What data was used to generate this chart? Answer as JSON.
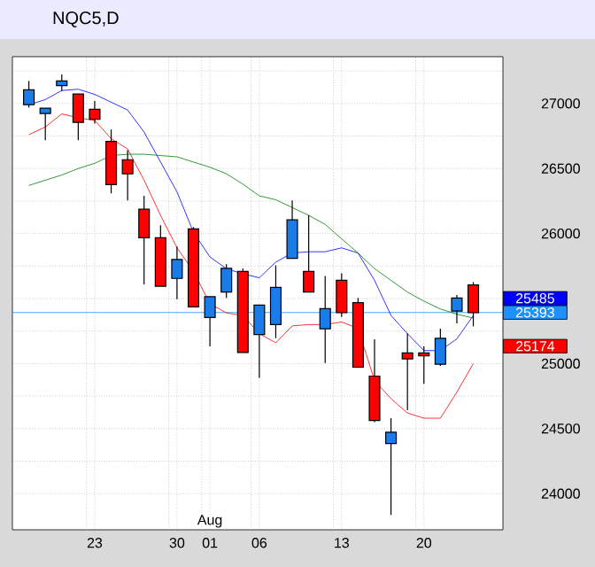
{
  "chart_data": {
    "type": "candlestick",
    "title": "NQC5,D",
    "categories": [
      null,
      null,
      null,
      null,
      "23",
      null,
      null,
      null,
      null,
      "30",
      null,
      "01",
      null,
      null,
      "06",
      null,
      null,
      null,
      null,
      "13",
      null,
      null,
      null,
      null,
      "20",
      null,
      null,
      null
    ],
    "ohlc": [
      [
        26991,
        27173,
        26969,
        27105
      ],
      [
        26923,
        26964,
        26718,
        26964
      ],
      [
        27137,
        27223,
        27096,
        27173
      ],
      [
        27073,
        27073,
        26718,
        26855
      ],
      [
        26955,
        27019,
        26846,
        26878
      ],
      [
        26709,
        26800,
        26309,
        26377
      ],
      [
        26568,
        26641,
        26255,
        26459
      ],
      [
        26187,
        26291,
        25609,
        25968
      ],
      [
        25968,
        26064,
        25595,
        25595
      ],
      [
        25655,
        25900,
        25495,
        25800
      ],
      [
        26036,
        26050,
        25436,
        25436
      ],
      [
        25354,
        25514,
        25132,
        25514
      ],
      [
        25550,
        25764,
        25505,
        25732
      ],
      [
        25709,
        25732,
        25086,
        25086
      ],
      [
        25223,
        25450,
        24891,
        25450
      ],
      [
        25300,
        25755,
        25195,
        25586
      ],
      [
        25809,
        26255,
        25809,
        26105
      ],
      [
        25709,
        26141,
        25550,
        25550
      ],
      [
        25268,
        25673,
        25004,
        25423
      ],
      [
        25641,
        25695,
        25359,
        25391
      ],
      [
        25468,
        25505,
        24972,
        24972
      ],
      [
        24904,
        25186,
        24550,
        24563
      ],
      [
        24386,
        24581,
        23836,
        24472
      ],
      [
        25082,
        25232,
        24641,
        25036
      ],
      [
        25082,
        25132,
        24845,
        25059
      ],
      [
        24995,
        25268,
        24982,
        25195
      ],
      [
        25404,
        25527,
        25309,
        25505
      ],
      [
        25605,
        25627,
        25286,
        25391
      ]
    ],
    "colors": [
      "#1a7ce8",
      "#1a7ce8",
      "#1a7ce8",
      "#ff0000",
      "#ff0000",
      "#ff0000",
      "#ff0000",
      "#ff0000",
      "#ff0000",
      "#1a7ce8",
      "#ff0000",
      "#1a7ce8",
      "#1a7ce8",
      "#ff0000",
      "#1a7ce8",
      "#1a7ce8",
      "#1a7ce8",
      "#ff0000",
      "#1a7ce8",
      "#ff0000",
      "#ff0000",
      "#ff0000",
      "#1a7ce8",
      "#ff0000",
      "#ff0000",
      "#1a7ce8",
      "#1a7ce8",
      "#ff0000"
    ],
    "series": [
      {
        "type": "line",
        "color": "#ff0000",
        "values": [
          26760,
          26820,
          26920,
          26890,
          26870,
          26730,
          26650,
          26410,
          26140,
          25890,
          25710,
          25460,
          25390,
          25370,
          25230,
          25160,
          25290,
          25300,
          25300,
          25320,
          25270,
          24870,
          24730,
          24620,
          24580,
          24580,
          24780,
          25000
        ]
      },
      {
        "type": "line",
        "color": "#0000ff",
        "values": [
          26990,
          27030,
          27100,
          27110,
          27070,
          27010,
          26950,
          26780,
          26550,
          26320,
          26010,
          25820,
          25730,
          25690,
          25660,
          25780,
          25850,
          25860,
          25860,
          25890,
          25850,
          25640,
          25370,
          25230,
          25100,
          25100,
          25190,
          25370
        ]
      },
      {
        "type": "line",
        "color": "#008000",
        "values": [
          26370,
          26410,
          26450,
          26500,
          26540,
          26600,
          26610,
          26610,
          26600,
          26590,
          26550,
          26510,
          26460,
          26380,
          26290,
          26260,
          26200,
          26140,
          26070,
          25960,
          25850,
          25730,
          25640,
          25550,
          25480,
          25420,
          25380,
          25350
        ]
      }
    ],
    "ylim": [
      23722,
      27360
    ],
    "yticks": [
      24000,
      {
        "value": 24250,
        "label": null
      },
      24500,
      {
        "value": 24750,
        "label": null
      },
      25000,
      {
        "value": 25250,
        "label": null
      },
      {
        "value": 25500,
        "label": null
      },
      {
        "value": 25750,
        "label": null
      },
      26000,
      {
        "value": 26250,
        "label": null
      },
      26500,
      {
        "value": 26750,
        "label": null
      },
      27000,
      {
        "value": 27250,
        "label": null
      }
    ],
    "ref_lines": [
      {
        "axis": "y",
        "value": 25393,
        "label": "25393",
        "color": "#1e90ff"
      }
    ],
    "annotations": [
      "Aug",
      "25485",
      "25174"
    ],
    "grid": true,
    "marker": "none",
    "line_style": "solid"
  }
}
